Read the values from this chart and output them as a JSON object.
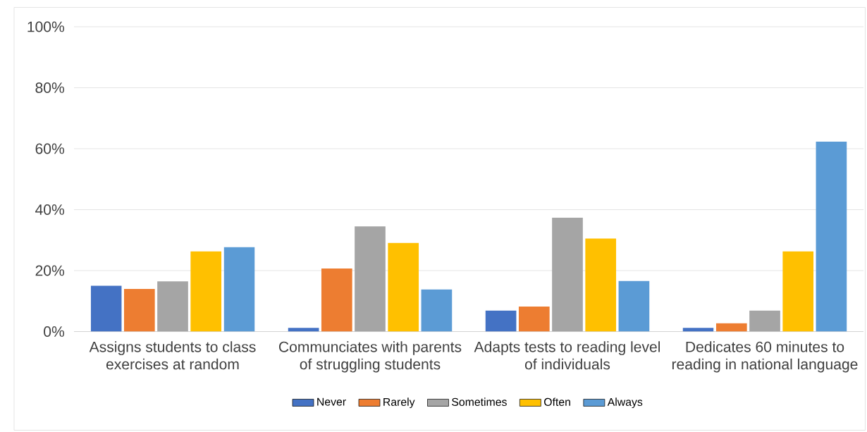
{
  "chart_data": {
    "type": "bar",
    "categories": [
      "Assigns students to class exercises at random",
      "Communciates with parents of struggling students",
      "Adapts tests to reading level of individuals",
      "Dedicates 60 minutes to reading in national language"
    ],
    "series": [
      {
        "name": "Never",
        "color": "#4472c4",
        "values": [
          15,
          1.2,
          6.9,
          1.2
        ]
      },
      {
        "name": "Rarely",
        "color": "#ed7d31",
        "values": [
          14,
          20.7,
          8.2,
          2.7
        ]
      },
      {
        "name": "Sometimes",
        "color": "#a5a5a5",
        "values": [
          16.5,
          34.5,
          37.4,
          6.9
        ]
      },
      {
        "name": "Often",
        "color": "#ffc000",
        "values": [
          26.3,
          29.1,
          30.5,
          26.3
        ]
      },
      {
        "name": "Always",
        "color": "#5b9bd5",
        "values": [
          27.7,
          13.8,
          16.6,
          62.3
        ]
      }
    ],
    "ylim": [
      0,
      100
    ],
    "yticks": [
      {
        "value": 0,
        "label": "0%"
      },
      {
        "value": 20,
        "label": "20%"
      },
      {
        "value": 40,
        "label": "40%"
      },
      {
        "value": 60,
        "label": "60%"
      },
      {
        "value": 80,
        "label": "80%"
      },
      {
        "value": 100,
        "label": "100%"
      }
    ],
    "grid": "y",
    "legend": "bottom"
  }
}
